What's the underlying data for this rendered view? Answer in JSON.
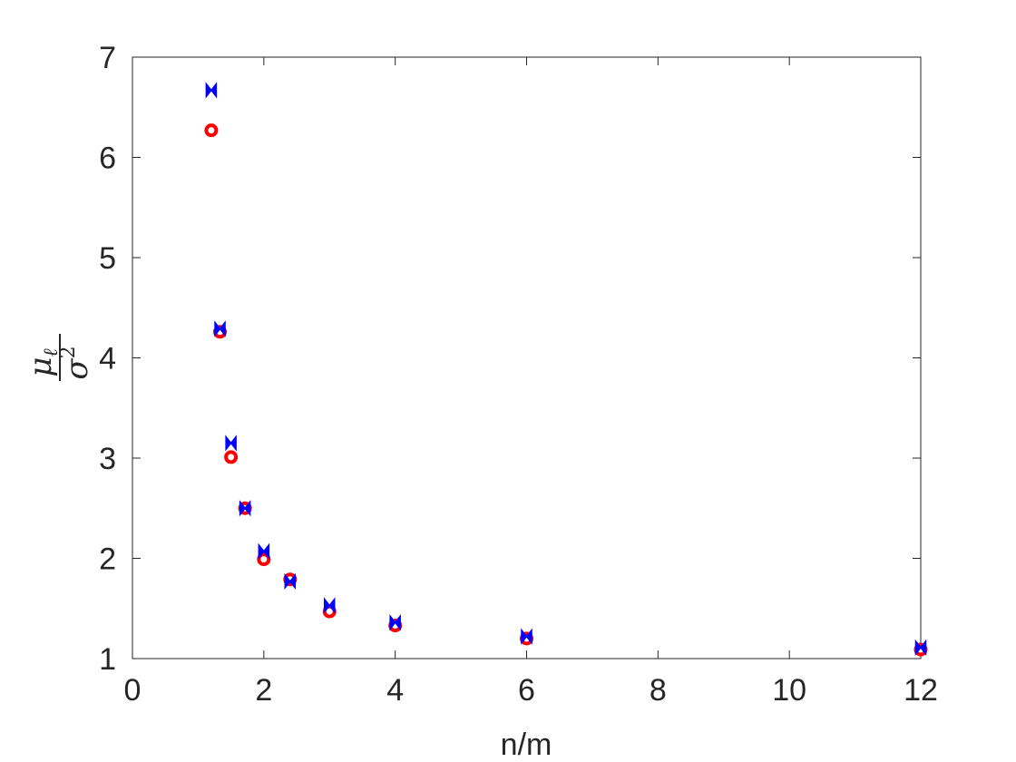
{
  "chart_data": {
    "type": "scatter",
    "xlabel": "n/m",
    "ylabel": {
      "numerator": "μ",
      "numerator_subscript": "ℓ",
      "denominator": "σ",
      "denominator_superscript": "2"
    },
    "xlim": [
      0,
      12
    ],
    "ylim": [
      1,
      7
    ],
    "xticks": [
      "0",
      "2",
      "4",
      "6",
      "8",
      "10",
      "12"
    ],
    "yticks": [
      "1",
      "2",
      "3",
      "4",
      "5",
      "6",
      "7"
    ],
    "grid": false,
    "legend": "none",
    "series": [
      {
        "marker": "circle",
        "color": "#ff0000",
        "x": [
          1.2,
          1.333,
          1.5,
          1.714,
          2,
          2.4,
          3,
          4,
          6,
          12
        ],
        "y": [
          6.27,
          4.26,
          3.01,
          2.5,
          1.99,
          1.79,
          1.47,
          1.33,
          1.2,
          1.09
        ]
      },
      {
        "marker": "bowtie",
        "color": "#0000ff",
        "x": [
          1.2,
          1.333,
          1.5,
          1.714,
          2,
          2.4,
          3,
          4,
          6,
          12
        ],
        "y": [
          6.67,
          4.29,
          3.15,
          2.5,
          2.07,
          1.77,
          1.53,
          1.36,
          1.22,
          1.11
        ]
      }
    ]
  }
}
